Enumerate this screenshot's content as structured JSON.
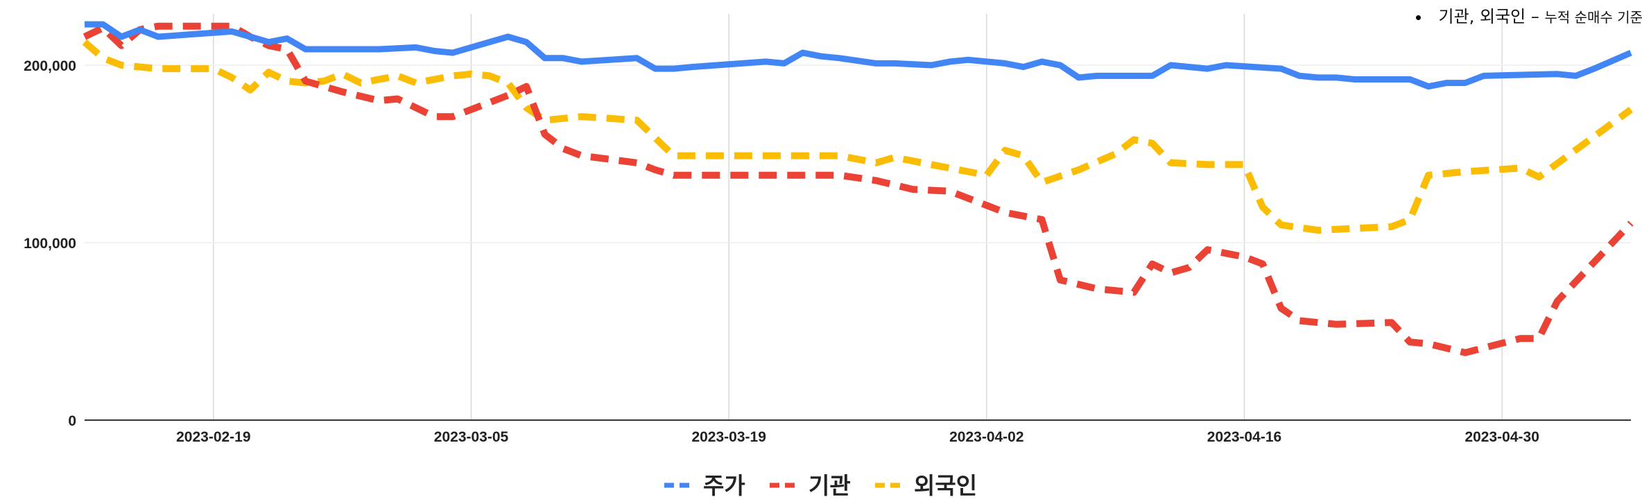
{
  "note": {
    "main": "기관, 외국인",
    "dash": "–",
    "small": "누적 순매수 기준"
  },
  "chart_data": {
    "type": "line",
    "x_start": "2023-02-13",
    "xlim": [
      "2023-02-12",
      "2023-05-07"
    ],
    "ylim": [
      0,
      225000
    ],
    "x_ticks": [
      "2023-02-19",
      "2023-03-05",
      "2023-03-19",
      "2023-04-02",
      "2023-04-16",
      "2023-04-30"
    ],
    "y_ticks": [
      0,
      100000,
      200000
    ],
    "y_tick_labels": [
      "0",
      "100,000",
      "200,000"
    ],
    "grid": true,
    "legend_position": "bottom",
    "series": [
      {
        "name": "주가",
        "color": "#4285f4",
        "dash": "solid",
        "points": [
          [
            "2023-02-12",
            223000
          ],
          [
            "2023-02-13",
            223000
          ],
          [
            "2023-02-14",
            216000
          ],
          [
            "2023-02-15",
            220000
          ],
          [
            "2023-02-16",
            216000
          ],
          [
            "2023-02-20",
            219000
          ],
          [
            "2023-02-21",
            216000
          ],
          [
            "2023-02-22",
            213000
          ],
          [
            "2023-02-23",
            215000
          ],
          [
            "2023-02-24",
            209000
          ],
          [
            "2023-02-28",
            209000
          ],
          [
            "2023-03-02",
            210000
          ],
          [
            "2023-03-03",
            208000
          ],
          [
            "2023-03-04",
            207000
          ],
          [
            "2023-03-06",
            213000
          ],
          [
            "2023-03-07",
            216000
          ],
          [
            "2023-03-08",
            213000
          ],
          [
            "2023-03-09",
            204000
          ],
          [
            "2023-03-10",
            204000
          ],
          [
            "2023-03-11",
            202000
          ],
          [
            "2023-03-14",
            204000
          ],
          [
            "2023-03-15",
            198000
          ],
          [
            "2023-03-16",
            198000
          ],
          [
            "2023-03-17",
            199000
          ],
          [
            "2023-03-21",
            202000
          ],
          [
            "2023-03-22",
            201000
          ],
          [
            "2023-03-23",
            207000
          ],
          [
            "2023-03-24",
            205000
          ],
          [
            "2023-03-25",
            204000
          ],
          [
            "2023-03-27",
            201000
          ],
          [
            "2023-03-28",
            201000
          ],
          [
            "2023-03-30",
            200000
          ],
          [
            "2023-03-31",
            202000
          ],
          [
            "2023-04-01",
            203000
          ],
          [
            "2023-04-03",
            201000
          ],
          [
            "2023-04-04",
            199000
          ],
          [
            "2023-04-05",
            202000
          ],
          [
            "2023-04-06",
            200000
          ],
          [
            "2023-04-07",
            193000
          ],
          [
            "2023-04-08",
            194000
          ],
          [
            "2023-04-11",
            194000
          ],
          [
            "2023-04-12",
            200000
          ],
          [
            "2023-04-14",
            198000
          ],
          [
            "2023-04-15",
            200000
          ],
          [
            "2023-04-18",
            198000
          ],
          [
            "2023-04-19",
            194000
          ],
          [
            "2023-04-20",
            193000
          ],
          [
            "2023-04-21",
            193000
          ],
          [
            "2023-04-22",
            192000
          ],
          [
            "2023-04-25",
            192000
          ],
          [
            "2023-04-26",
            188000
          ],
          [
            "2023-04-27",
            190000
          ],
          [
            "2023-04-28",
            190000
          ],
          [
            "2023-04-29",
            194000
          ],
          [
            "2023-05-03",
            195000
          ],
          [
            "2023-05-04",
            194000
          ],
          [
            "2023-05-05",
            198000
          ],
          [
            "2023-05-07",
            207000
          ]
        ]
      },
      {
        "name": "기관",
        "color": "#ea4335",
        "dash": "dashed",
        "points": [
          [
            "2023-02-12",
            216000
          ],
          [
            "2023-02-13",
            221000
          ],
          [
            "2023-02-14",
            211000
          ],
          [
            "2023-02-15",
            220000
          ],
          [
            "2023-02-16",
            222000
          ],
          [
            "2023-02-20",
            222000
          ],
          [
            "2023-02-21",
            216000
          ],
          [
            "2023-02-22",
            211000
          ],
          [
            "2023-02-23",
            209000
          ],
          [
            "2023-02-24",
            191000
          ],
          [
            "2023-02-26",
            185000
          ],
          [
            "2023-02-28",
            180000
          ],
          [
            "2023-03-01",
            181000
          ],
          [
            "2023-03-03",
            171000
          ],
          [
            "2023-03-04",
            171000
          ],
          [
            "2023-03-06",
            179000
          ],
          [
            "2023-03-07",
            183000
          ],
          [
            "2023-03-08",
            188000
          ],
          [
            "2023-03-09",
            161000
          ],
          [
            "2023-03-10",
            153000
          ],
          [
            "2023-03-11",
            149000
          ],
          [
            "2023-03-14",
            145000
          ],
          [
            "2023-03-15",
            141000
          ],
          [
            "2023-03-16",
            138000
          ],
          [
            "2023-03-21",
            138000
          ],
          [
            "2023-03-25",
            138000
          ],
          [
            "2023-03-27",
            135000
          ],
          [
            "2023-03-29",
            130000
          ],
          [
            "2023-03-31",
            129000
          ],
          [
            "2023-04-02",
            121000
          ],
          [
            "2023-04-03",
            117000
          ],
          [
            "2023-04-05",
            113000
          ],
          [
            "2023-04-06",
            79000
          ],
          [
            "2023-04-08",
            74000
          ],
          [
            "2023-04-10",
            72000
          ],
          [
            "2023-04-11",
            88000
          ],
          [
            "2023-04-12",
            83000
          ],
          [
            "2023-04-13",
            86000
          ],
          [
            "2023-04-14",
            96000
          ],
          [
            "2023-04-16",
            92000
          ],
          [
            "2023-04-17",
            88000
          ],
          [
            "2023-04-18",
            63000
          ],
          [
            "2023-04-19",
            56000
          ],
          [
            "2023-04-21",
            54000
          ],
          [
            "2023-04-24",
            55000
          ],
          [
            "2023-04-25",
            44000
          ],
          [
            "2023-04-26",
            43000
          ],
          [
            "2023-04-28",
            38000
          ],
          [
            "2023-05-01",
            46000
          ],
          [
            "2023-05-02",
            46000
          ],
          [
            "2023-05-03",
            67000
          ],
          [
            "2023-05-07",
            111000
          ]
        ]
      },
      {
        "name": "외국인",
        "color": "#fbbc04",
        "dash": "dashed",
        "points": [
          [
            "2023-02-12",
            213000
          ],
          [
            "2023-02-13",
            204000
          ],
          [
            "2023-02-14",
            200000
          ],
          [
            "2023-02-16",
            198000
          ],
          [
            "2023-02-18",
            198000
          ],
          [
            "2023-02-19",
            198000
          ],
          [
            "2023-02-20",
            193000
          ],
          [
            "2023-02-21",
            186000
          ],
          [
            "2023-02-22",
            196000
          ],
          [
            "2023-02-23",
            191000
          ],
          [
            "2023-02-24",
            190000
          ],
          [
            "2023-02-25",
            191000
          ],
          [
            "2023-02-26",
            195000
          ],
          [
            "2023-02-27",
            190000
          ],
          [
            "2023-03-01",
            194000
          ],
          [
            "2023-03-02",
            190000
          ],
          [
            "2023-03-04",
            194000
          ],
          [
            "2023-03-05",
            195000
          ],
          [
            "2023-03-06",
            194000
          ],
          [
            "2023-03-07",
            190000
          ],
          [
            "2023-03-08",
            176000
          ],
          [
            "2023-03-09",
            169000
          ],
          [
            "2023-03-10",
            170000
          ],
          [
            "2023-03-11",
            171000
          ],
          [
            "2023-03-14",
            169000
          ],
          [
            "2023-03-16",
            149000
          ],
          [
            "2023-03-19",
            149000
          ],
          [
            "2023-03-23",
            149000
          ],
          [
            "2023-03-25",
            149000
          ],
          [
            "2023-03-27",
            145000
          ],
          [
            "2023-03-28",
            148000
          ],
          [
            "2023-03-29",
            146000
          ],
          [
            "2023-03-31",
            142000
          ],
          [
            "2023-04-02",
            138000
          ],
          [
            "2023-04-03",
            152000
          ],
          [
            "2023-04-04",
            149000
          ],
          [
            "2023-04-05",
            134000
          ],
          [
            "2023-04-07",
            141000
          ],
          [
            "2023-04-09",
            150000
          ],
          [
            "2023-04-10",
            158000
          ],
          [
            "2023-04-11",
            156000
          ],
          [
            "2023-04-12",
            145000
          ],
          [
            "2023-04-14",
            144000
          ],
          [
            "2023-04-16",
            144000
          ],
          [
            "2023-04-17",
            120000
          ],
          [
            "2023-04-18",
            110000
          ],
          [
            "2023-04-20",
            107000
          ],
          [
            "2023-04-22",
            108000
          ],
          [
            "2023-04-24",
            109000
          ],
          [
            "2023-04-25",
            113000
          ],
          [
            "2023-04-26",
            138000
          ],
          [
            "2023-04-28",
            140000
          ],
          [
            "2023-05-01",
            142000
          ],
          [
            "2023-05-02",
            137000
          ],
          [
            "2023-05-07",
            175000
          ]
        ]
      }
    ]
  }
}
